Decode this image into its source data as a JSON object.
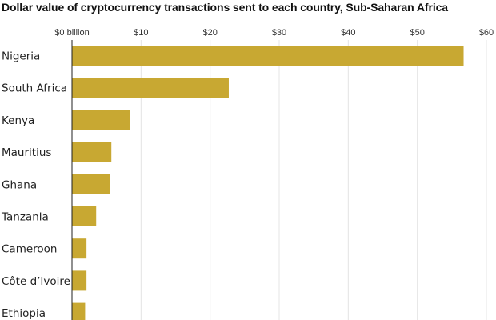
{
  "chart_data": {
    "type": "bar",
    "orientation": "horizontal",
    "title": "Dollar value of cryptocurrency transactions sent to each country, Sub-Saharan Africa",
    "categories": [
      "Nigeria",
      "South Africa",
      "Kenya",
      "Mauritius",
      "Ghana",
      "Tanzania",
      "Cameroon",
      "Côte d’Ivoire",
      "Ethiopia"
    ],
    "values": [
      56.7,
      22.7,
      8.4,
      5.7,
      5.5,
      3.5,
      2.1,
      2.1,
      1.9
    ],
    "xlim": [
      0,
      60
    ],
    "ticks": [
      0,
      10,
      20,
      30,
      40,
      50,
      60
    ],
    "tick_labels": [
      "$0 billion",
      "$10",
      "$20",
      "$30",
      "$40",
      "$50",
      "$60"
    ],
    "grid": true,
    "legend": "none",
    "bar_color": "#c8a832"
  }
}
